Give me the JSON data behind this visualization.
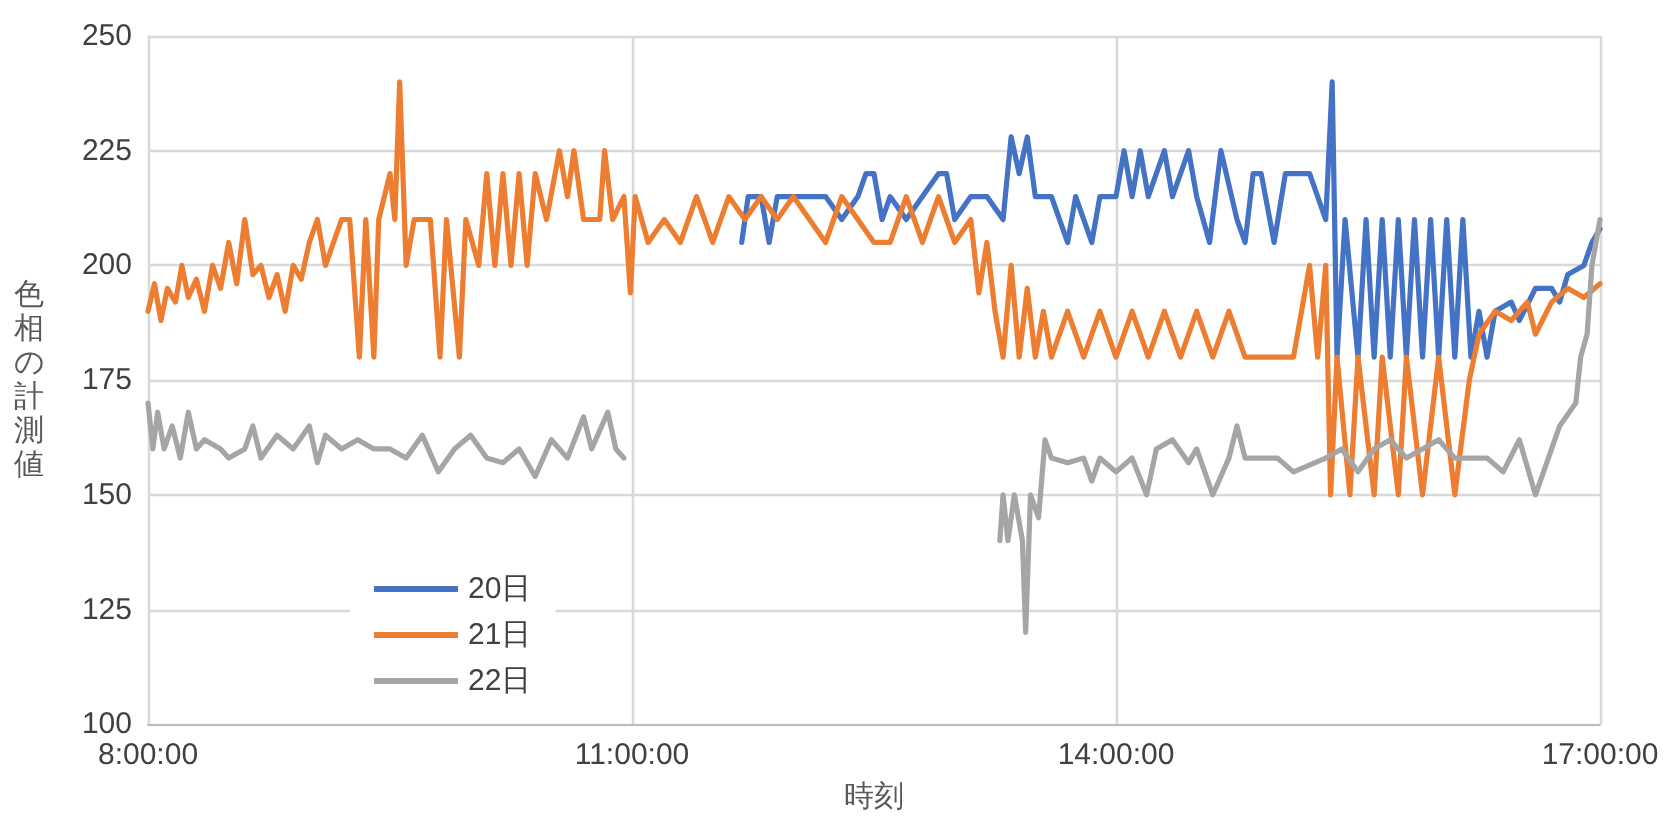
{
  "chart_data": {
    "type": "line",
    "xlabel": "時刻",
    "ylabel": "色相の計測値",
    "xlim": [
      8,
      17
    ],
    "xticks": [
      {
        "value": 8,
        "label": "8:00:00"
      },
      {
        "value": 11,
        "label": "11:00:00"
      },
      {
        "value": 14,
        "label": "14:00:00"
      },
      {
        "value": 17,
        "label": "17:00:00"
      }
    ],
    "ylim": [
      100,
      250
    ],
    "yticks": [
      100,
      125,
      150,
      175,
      200,
      225,
      250
    ],
    "grid": true,
    "legend": "bottom left",
    "marker": "none",
    "line_style": "solid",
    "series": [
      {
        "name": "20日",
        "color": "#4472c4",
        "x": [
          11.68,
          11.72,
          11.8,
          11.85,
          11.9,
          12.0,
          12.2,
          12.3,
          12.4,
          12.45,
          12.5,
          12.55,
          12.6,
          12.7,
          12.8,
          12.9,
          12.95,
          13.0,
          13.1,
          13.2,
          13.3,
          13.35,
          13.4,
          13.45,
          13.5,
          13.6,
          13.7,
          13.75,
          13.85,
          13.9,
          14.0,
          14.05,
          14.1,
          14.15,
          14.2,
          14.3,
          14.35,
          14.45,
          14.5,
          14.58,
          14.65,
          14.75,
          14.8,
          14.85,
          14.9,
          14.98,
          15.05,
          15.2,
          15.3,
          15.34,
          15.37,
          15.42,
          15.5,
          15.55,
          15.6,
          15.65,
          15.7,
          15.75,
          15.8,
          15.85,
          15.9,
          15.95,
          16.0,
          16.05,
          16.1,
          16.15,
          16.2,
          16.25,
          16.3,
          16.35,
          16.45,
          16.5,
          16.6,
          16.7,
          16.75,
          16.8,
          16.9,
          16.95,
          17.0
        ],
        "values": [
          205,
          215,
          215,
          205,
          215,
          215,
          215,
          210,
          215,
          220,
          220,
          210,
          215,
          210,
          215,
          220,
          220,
          210,
          215,
          215,
          210,
          228,
          220,
          228,
          215,
          215,
          205,
          215,
          205,
          215,
          215,
          225,
          215,
          225,
          215,
          225,
          215,
          225,
          215,
          205,
          225,
          210,
          205,
          220,
          220,
          205,
          220,
          220,
          210,
          240,
          180,
          210,
          180,
          210,
          180,
          210,
          180,
          210,
          180,
          210,
          180,
          210,
          180,
          210,
          180,
          210,
          180,
          190,
          180,
          190,
          192,
          188,
          195,
          195,
          192,
          198,
          200,
          205,
          208
        ]
      },
      {
        "name": "21日",
        "color": "#ed7d31",
        "x": [
          8.0,
          8.04,
          8.08,
          8.12,
          8.17,
          8.21,
          8.25,
          8.3,
          8.35,
          8.4,
          8.45,
          8.5,
          8.55,
          8.6,
          8.65,
          8.7,
          8.75,
          8.8,
          8.85,
          8.9,
          8.95,
          9.0,
          9.05,
          9.1,
          9.15,
          9.2,
          9.25,
          9.31,
          9.35,
          9.4,
          9.43,
          9.5,
          9.53,
          9.56,
          9.6,
          9.65,
          9.75,
          9.81,
          9.85,
          9.93,
          9.97,
          10.05,
          10.1,
          10.15,
          10.2,
          10.25,
          10.3,
          10.35,
          10.4,
          10.47,
          10.55,
          10.6,
          10.64,
          10.7,
          10.8,
          10.83,
          10.88,
          10.95,
          10.99,
          11.02,
          11.1,
          11.2,
          11.3,
          11.4,
          11.5,
          11.6,
          11.7,
          11.8,
          11.9,
          12.0,
          12.1,
          12.2,
          12.3,
          12.4,
          12.5,
          12.6,
          12.7,
          12.8,
          12.9,
          13.0,
          13.1,
          13.15,
          13.2,
          13.25,
          13.3,
          13.35,
          13.4,
          13.45,
          13.5,
          13.55,
          13.6,
          13.7,
          13.8,
          13.9,
          14.0,
          14.1,
          14.2,
          14.3,
          14.4,
          14.5,
          14.6,
          14.7,
          14.8,
          14.9,
          15.1,
          15.15,
          15.2,
          15.25,
          15.3,
          15.33,
          15.37,
          15.45,
          15.5,
          15.6,
          15.65,
          15.75,
          15.8,
          15.9,
          16.0,
          16.1,
          16.19,
          16.25,
          16.35,
          16.45,
          16.55,
          16.6,
          16.7,
          16.8,
          16.9,
          17.0
        ],
        "values": [
          190,
          196,
          188,
          195,
          192,
          200,
          193,
          197,
          190,
          200,
          195,
          205,
          196,
          210,
          198,
          200,
          193,
          198,
          190,
          200,
          197,
          205,
          210,
          200,
          205,
          210,
          210,
          180,
          210,
          180,
          210,
          220,
          210,
          240,
          200,
          210,
          210,
          180,
          210,
          180,
          210,
          200,
          220,
          200,
          220,
          200,
          220,
          200,
          220,
          210,
          225,
          215,
          225,
          210,
          210,
          225,
          210,
          215,
          194,
          215,
          205,
          210,
          205,
          215,
          205,
          215,
          210,
          215,
          210,
          215,
          210,
          205,
          215,
          210,
          205,
          205,
          215,
          205,
          215,
          205,
          210,
          194,
          205,
          190,
          180,
          200,
          180,
          195,
          180,
          190,
          180,
          190,
          180,
          190,
          180,
          190,
          180,
          190,
          180,
          190,
          180,
          190,
          180,
          180,
          180,
          190,
          200,
          180,
          200,
          150,
          180,
          150,
          180,
          150,
          180,
          150,
          180,
          150,
          180,
          150,
          175,
          185,
          190,
          188,
          192,
          185,
          192,
          195,
          193,
          196
        ]
      },
      {
        "name": "22日",
        "color": "#a5a5a5",
        "x": [
          8.0,
          8.03,
          8.06,
          8.1,
          8.15,
          8.2,
          8.25,
          8.3,
          8.35,
          8.45,
          8.5,
          8.6,
          8.65,
          8.7,
          8.8,
          8.9,
          9.0,
          9.05,
          9.1,
          9.2,
          9.3,
          9.4,
          9.5,
          9.6,
          9.7,
          9.8,
          9.9,
          10.0,
          10.1,
          10.2,
          10.3,
          10.4,
          10.5,
          10.6,
          10.7,
          10.75,
          10.85,
          10.9,
          10.95,
          12.0,
          13.28,
          13.3,
          13.33,
          13.37,
          13.42,
          13.44,
          13.47,
          13.52,
          13.56,
          13.6,
          13.7,
          13.8,
          13.85,
          13.9,
          14.0,
          14.1,
          14.19,
          14.25,
          14.35,
          14.45,
          14.5,
          14.6,
          14.7,
          14.75,
          14.8,
          15.0,
          15.1,
          15.3,
          15.4,
          15.5,
          15.6,
          15.7,
          15.8,
          15.9,
          16.0,
          16.1,
          16.3,
          16.4,
          16.5,
          16.6,
          16.7,
          16.75,
          16.85,
          16.88,
          16.92,
          16.95,
          17.0
        ],
        "values": [
          170,
          160,
          168,
          160,
          165,
          158,
          168,
          160,
          162,
          160,
          158,
          160,
          165,
          158,
          163,
          160,
          165,
          157,
          163,
          160,
          162,
          160,
          160,
          158,
          163,
          155,
          160,
          163,
          158,
          157,
          160,
          154,
          162,
          158,
          167,
          160,
          168,
          160,
          158,
          null,
          140,
          150,
          140,
          150,
          140,
          120,
          150,
          145,
          162,
          158,
          157,
          158,
          153,
          158,
          155,
          158,
          150,
          160,
          162,
          157,
          160,
          150,
          158,
          165,
          158,
          158,
          155,
          158,
          160,
          155,
          160,
          162,
          158,
          160,
          162,
          158,
          158,
          155,
          162,
          150,
          160,
          165,
          170,
          180,
          185,
          200,
          210
        ]
      }
    ]
  }
}
